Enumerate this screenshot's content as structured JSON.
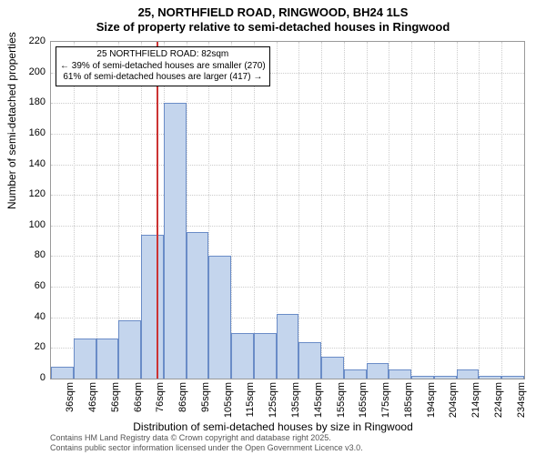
{
  "title_line1": "25, NORTHFIELD ROAD, RINGWOOD, BH24 1LS",
  "title_line2": "Size of property relative to semi-detached houses in Ringwood",
  "y_axis_label": "Number of semi-detached properties",
  "x_axis_label": "Distribution of semi-detached houses by size in Ringwood",
  "annotation": {
    "line1": "25 NORTHFIELD ROAD: 82sqm",
    "line2": "← 39% of semi-detached houses are smaller (270)",
    "line3": "61% of semi-detached houses are larger (417) →"
  },
  "footer_line1": "Contains HM Land Registry data © Crown copyright and database right 2025.",
  "footer_line2": "Contains public sector information licensed under the Open Government Licence v3.0.",
  "chart": {
    "type": "histogram",
    "ylim": [
      0,
      220
    ],
    "ytick_step": 20,
    "y_ticks": [
      0,
      20,
      40,
      60,
      80,
      100,
      120,
      140,
      160,
      180,
      200,
      220
    ],
    "x_categories": [
      "36sqm",
      "46sqm",
      "56sqm",
      "66sqm",
      "76sqm",
      "86sqm",
      "95sqm",
      "105sqm",
      "115sqm",
      "125sqm",
      "135sqm",
      "145sqm",
      "155sqm",
      "165sqm",
      "175sqm",
      "185sqm",
      "194sqm",
      "204sqm",
      "214sqm",
      "224sqm",
      "234sqm"
    ],
    "values": [
      8,
      26,
      26,
      38,
      94,
      180,
      96,
      80,
      30,
      30,
      42,
      24,
      14,
      6,
      10,
      6,
      2,
      2,
      6,
      2,
      2
    ],
    "bar_fill": "#c4d5ed",
    "bar_stroke": "#6a8cc7",
    "marker_x_category_index": 4.7,
    "marker_color": "#cc3333",
    "background_color": "#ffffff",
    "grid_color": "#cccccc",
    "axis_color": "#999999",
    "title_fontsize": 13,
    "label_fontsize": 12,
    "tick_fontsize": 11,
    "annotation_fontsize": 10,
    "footer_fontsize": 9
  }
}
